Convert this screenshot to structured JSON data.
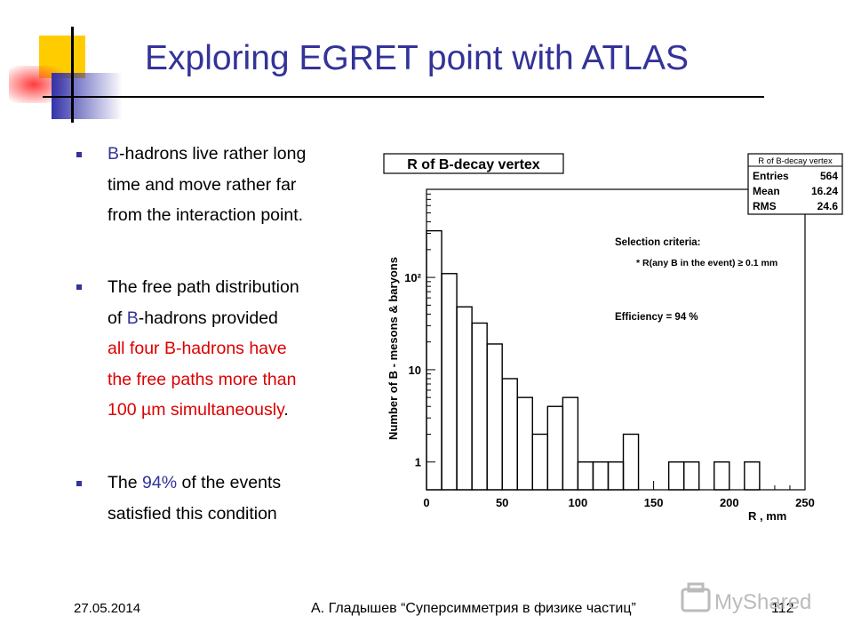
{
  "slide": {
    "title": "Exploring EGRET point with ATLAS",
    "bullets": [
      {
        "lines": [
          [
            {
              "t": "B",
              "c": "blue"
            },
            {
              "t": "-hadrons live rather long"
            }
          ],
          [
            {
              "t": "time and move rather far"
            }
          ],
          [
            {
              "t": "from the interaction point."
            }
          ]
        ]
      },
      {
        "lines": [
          [
            {
              "t": "The free path distribution"
            }
          ],
          [
            {
              "t": "of "
            },
            {
              "t": "B",
              "c": "blue"
            },
            {
              "t": "-hadrons provided"
            }
          ],
          [
            {
              "t": "all four B-hadrons have",
              "c": "red"
            }
          ],
          [
            {
              "t": "the free paths more than",
              "c": "red"
            }
          ],
          [
            {
              "t": "100 µm simultaneously",
              "c": "red"
            },
            {
              "t": "."
            }
          ]
        ]
      },
      {
        "lines": [
          [
            {
              "t": "The "
            },
            {
              "t": "94%",
              "c": "blue"
            },
            {
              "t": " of the events"
            }
          ],
          [
            {
              "t": "satisfied this condition"
            }
          ]
        ]
      }
    ]
  },
  "footer": {
    "date": "27.05.2014",
    "author": "А. Гладышев “Суперсимметрия в физике частиц”",
    "page": "112",
    "watermark": "MyShared"
  },
  "colors": {
    "title": "#333399",
    "blue_text": "#333399",
    "red_text": "#dd0000",
    "bullet": "#333399"
  },
  "chart_data": {
    "type": "bar",
    "style": "histogram-step",
    "title": "R of B-decay vertex",
    "xlabel": "R ,  mm",
    "ylabel": "Number  of  B - mesons & baryons",
    "xlim": [
      0,
      250
    ],
    "ylim": [
      0.5,
      900
    ],
    "yscale": "log",
    "bin_width": 10,
    "x_ticks": [
      "0",
      "50",
      "100",
      "150",
      "200",
      "250"
    ],
    "y_tick_labels": [
      {
        "value": 1,
        "label": "1"
      },
      {
        "value": 10,
        "label": "10"
      },
      {
        "value": 100,
        "label": "10²"
      }
    ],
    "bins": [
      {
        "x0": 0,
        "value": 320
      },
      {
        "x0": 10,
        "value": 110
      },
      {
        "x0": 20,
        "value": 48
      },
      {
        "x0": 30,
        "value": 32
      },
      {
        "x0": 40,
        "value": 19
      },
      {
        "x0": 50,
        "value": 8
      },
      {
        "x0": 60,
        "value": 5
      },
      {
        "x0": 70,
        "value": 2
      },
      {
        "x0": 80,
        "value": 4
      },
      {
        "x0": 90,
        "value": 5
      },
      {
        "x0": 100,
        "value": 1
      },
      {
        "x0": 110,
        "value": 1
      },
      {
        "x0": 120,
        "value": 1
      },
      {
        "x0": 130,
        "value": 2
      },
      {
        "x0": 160,
        "value": 1
      },
      {
        "x0": 170,
        "value": 1
      },
      {
        "x0": 190,
        "value": 1
      },
      {
        "x0": 210,
        "value": 1
      }
    ],
    "stats": {
      "title": "R of B-decay vertex",
      "rows": [
        {
          "label": "Entries",
          "value": "564"
        },
        {
          "label": "Mean",
          "value": "16.24"
        },
        {
          "label": "RMS",
          "value": "24.6"
        }
      ]
    },
    "annotations": [
      "Selection criteria:",
      "* R(any B in the event) ≥ 0.1 mm",
      "Efficiency = 94 %"
    ]
  }
}
